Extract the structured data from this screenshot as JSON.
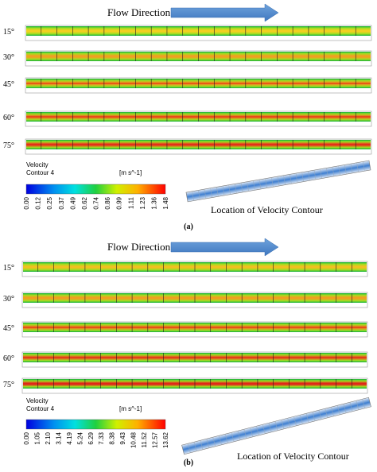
{
  "panels": [
    {
      "label": "(a)",
      "arrow_label": "Flow Direction",
      "rows": [
        "15°",
        "30°",
        "45°",
        "60°",
        "75°"
      ],
      "legend": {
        "title": "Velocity",
        "subtitle": "Contour 4",
        "unit": "[m s^-1]",
        "ticks": [
          "0.00",
          "0.12",
          "0.25",
          "0.37",
          "0.49",
          "0.62",
          "0.74",
          "0.86",
          "0.99",
          "1.11",
          "1.23",
          "1.36",
          "1.48"
        ]
      },
      "location_label": "Location of Velocity Contour"
    },
    {
      "label": "(b)",
      "arrow_label": "Flow Direction",
      "rows": [
        "15°",
        "30°",
        "45°",
        "60°",
        "75°"
      ],
      "legend": {
        "title": "Velocity",
        "subtitle": "Contour 4",
        "unit": "[m s^-1]",
        "ticks": [
          "0.00",
          "1.05",
          "2.10",
          "3.14",
          "4.19",
          "5.24",
          "6.29",
          "7.33",
          "8.38",
          "9.43",
          "10.48",
          "11.52",
          "12.57",
          "13.62"
        ]
      },
      "location_label": "Location of Velocity Contour"
    }
  ]
}
